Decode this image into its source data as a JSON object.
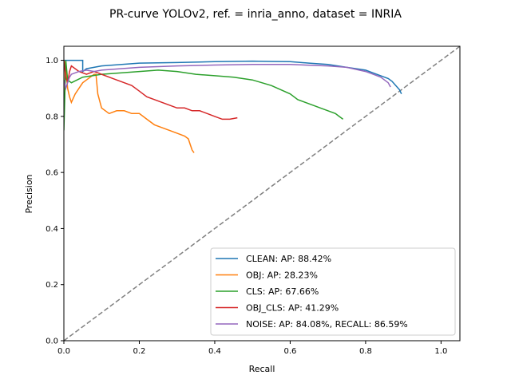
{
  "chart_data": {
    "type": "line",
    "title": "PR-curve YOLOv2, ref. = inria_anno, dataset = INRIA",
    "xlabel": "Recall",
    "ylabel": "Precision",
    "xlim": [
      0.0,
      1.05
    ],
    "ylim": [
      0.0,
      1.05
    ],
    "xticks": [
      "0.0",
      "0.2",
      "0.4",
      "0.6",
      "0.8",
      "1.0"
    ],
    "yticks": [
      "0.0",
      "0.2",
      "0.4",
      "0.6",
      "0.8",
      "1.0"
    ],
    "grid": false,
    "legend_position": "lower-right",
    "reference_line": {
      "x": [
        0.0,
        1.05
      ],
      "y": [
        0.0,
        1.05
      ],
      "color": "#7f7f7f",
      "style": "dashed"
    },
    "series": [
      {
        "name": "CLEAN: AP: 88.42%",
        "color": "#1f77b4",
        "x": [
          0.0,
          0.0,
          0.05,
          0.05,
          0.06,
          0.1,
          0.2,
          0.3,
          0.4,
          0.5,
          0.55,
          0.6,
          0.65,
          0.7,
          0.75,
          0.8,
          0.82,
          0.84,
          0.86,
          0.87,
          0.88,
          0.89,
          0.895
        ],
        "y": [
          0.97,
          1.0,
          1.0,
          0.96,
          0.97,
          0.98,
          0.99,
          0.992,
          0.995,
          0.997,
          0.996,
          0.995,
          0.99,
          0.985,
          0.975,
          0.965,
          0.955,
          0.945,
          0.935,
          0.925,
          0.91,
          0.895,
          0.88
        ]
      },
      {
        "name": "OBJ: AP: 28.23%",
        "color": "#ff7f0e",
        "x": [
          0.0,
          0.0,
          0.005,
          0.01,
          0.015,
          0.02,
          0.03,
          0.04,
          0.05,
          0.06,
          0.07,
          0.08,
          0.085,
          0.09,
          0.1,
          0.12,
          0.14,
          0.16,
          0.18,
          0.2,
          0.22,
          0.24,
          0.26,
          0.28,
          0.3,
          0.32,
          0.33,
          0.335,
          0.34,
          0.345
        ],
        "y": [
          0.8,
          1.0,
          0.98,
          0.9,
          0.87,
          0.85,
          0.88,
          0.9,
          0.92,
          0.93,
          0.94,
          0.95,
          0.95,
          0.88,
          0.83,
          0.81,
          0.82,
          0.82,
          0.81,
          0.81,
          0.79,
          0.77,
          0.76,
          0.75,
          0.74,
          0.73,
          0.72,
          0.7,
          0.68,
          0.67
        ]
      },
      {
        "name": "CLS: AP: 67.66%",
        "color": "#2ca02c",
        "x": [
          0.0,
          0.0,
          0.005,
          0.01,
          0.02,
          0.05,
          0.1,
          0.15,
          0.2,
          0.25,
          0.3,
          0.35,
          0.4,
          0.45,
          0.5,
          0.55,
          0.6,
          0.62,
          0.64,
          0.66,
          0.68,
          0.7,
          0.72,
          0.73,
          0.74
        ],
        "y": [
          0.76,
          0.75,
          1.0,
          0.93,
          0.92,
          0.94,
          0.95,
          0.955,
          0.96,
          0.965,
          0.96,
          0.95,
          0.945,
          0.94,
          0.93,
          0.91,
          0.88,
          0.86,
          0.85,
          0.84,
          0.83,
          0.82,
          0.81,
          0.8,
          0.79
        ]
      },
      {
        "name": "OBJ_CLS: AP: 41.29%",
        "color": "#d62728",
        "x": [
          0.0,
          0.005,
          0.01,
          0.015,
          0.02,
          0.04,
          0.06,
          0.08,
          0.1,
          0.12,
          0.14,
          0.16,
          0.18,
          0.2,
          0.22,
          0.24,
          0.26,
          0.28,
          0.3,
          0.32,
          0.34,
          0.36,
          0.38,
          0.4,
          0.42,
          0.44,
          0.46
        ],
        "y": [
          1.0,
          0.94,
          0.92,
          0.96,
          0.98,
          0.96,
          0.95,
          0.96,
          0.95,
          0.94,
          0.93,
          0.92,
          0.91,
          0.89,
          0.87,
          0.86,
          0.85,
          0.84,
          0.83,
          0.83,
          0.82,
          0.82,
          0.81,
          0.8,
          0.79,
          0.79,
          0.795
        ]
      },
      {
        "name": "NOISE: AP: 84.08%, RECALL: 86.59%",
        "color": "#9467bd",
        "x": [
          0.0,
          0.005,
          0.01,
          0.015,
          0.02,
          0.04,
          0.06,
          0.08,
          0.1,
          0.15,
          0.2,
          0.3,
          0.4,
          0.5,
          0.6,
          0.7,
          0.75,
          0.8,
          0.82,
          0.84,
          0.85,
          0.86,
          0.866
        ],
        "y": [
          0.93,
          0.9,
          0.92,
          0.94,
          0.95,
          0.96,
          0.965,
          0.96,
          0.965,
          0.97,
          0.975,
          0.98,
          0.983,
          0.985,
          0.985,
          0.98,
          0.975,
          0.96,
          0.95,
          0.94,
          0.93,
          0.92,
          0.905
        ]
      }
    ]
  }
}
